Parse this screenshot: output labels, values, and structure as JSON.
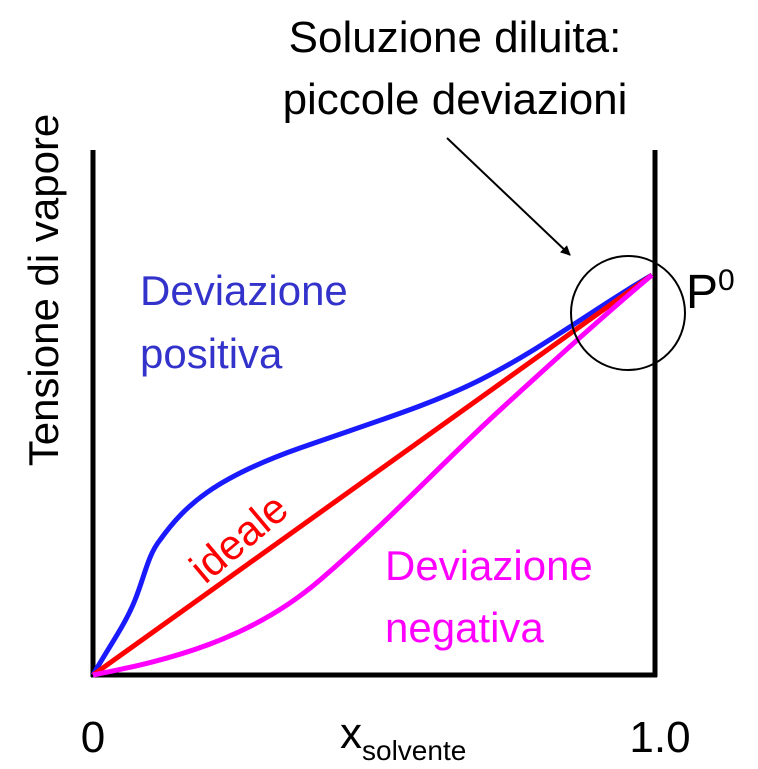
{
  "title": [
    "Soluzione diluita:",
    "piccole deviazioni"
  ],
  "y_axis_label": "Tensione di vapore",
  "x_axis_label": {
    "main": "x",
    "subscript": "solvente"
  },
  "x_ticks": [
    "0",
    "1.0"
  ],
  "point_label": {
    "main": "P",
    "superscript": "0"
  },
  "curves": {
    "positive": [
      "Deviazione",
      "positiva"
    ],
    "ideal": "ideale",
    "negative": [
      "Deviazione",
      "negativa"
    ]
  }
}
